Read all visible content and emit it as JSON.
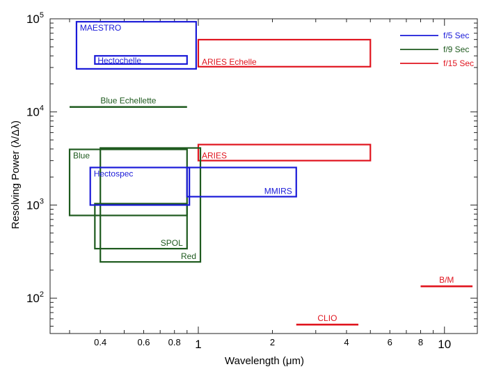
{
  "chart_data": {
    "type": "box-range",
    "xlabel": "Wavelength (μm)",
    "ylabel": "Resolving Power (λ/Δλ)",
    "xscale": "log",
    "yscale": "log",
    "xlim": [
      0.25,
      13.6
    ],
    "ylim": [
      41.7,
      100000
    ],
    "x_ticks": [
      {
        "value": 0.4,
        "label": "0.4"
      },
      {
        "value": 0.6,
        "label": "0.6"
      },
      {
        "value": 0.8,
        "label": "0.8"
      },
      {
        "value": 1,
        "label": "1"
      },
      {
        "value": 2,
        "label": "2"
      },
      {
        "value": 4,
        "label": "4"
      },
      {
        "value": 6,
        "label": "6"
      },
      {
        "value": 8,
        "label": "8"
      },
      {
        "value": 10,
        "label": "10"
      }
    ],
    "y_ticks": [
      {
        "value": 100,
        "base": "10",
        "exp": "2"
      },
      {
        "value": 1000,
        "base": "10",
        "exp": "3"
      },
      {
        "value": 10000,
        "base": "10",
        "exp": "4"
      },
      {
        "value": 100000,
        "base": "10",
        "exp": "5"
      }
    ],
    "legend": {
      "placement": "top-right",
      "entries": [
        {
          "label": "f/5 Sec",
          "color": "#1a1ad8"
        },
        {
          "label": "f/9 Sec",
          "color": "#1e5a1e"
        },
        {
          "label": "f/15 Sec",
          "color": "#e0141e"
        }
      ]
    },
    "instruments": [
      {
        "name": "MAESTRO",
        "group": "f/5 Sec",
        "shape": "box",
        "x": [
          0.32,
          0.98
        ],
        "y": [
          29000,
          93000
        ],
        "label_pos": "top-left"
      },
      {
        "name": "Hectochelle",
        "group": "f/5 Sec",
        "shape": "box",
        "x": [
          0.38,
          0.9
        ],
        "y": [
          32700,
          40000
        ],
        "label_pos": "left"
      },
      {
        "name": "ARIES Echelle",
        "group": "f/15 Sec",
        "shape": "box",
        "x": [
          1.0,
          5.0
        ],
        "y": [
          30600,
          59700
        ],
        "label_pos": "bottom-left"
      },
      {
        "name": "Blue Echellette",
        "group": "f/9 Sec",
        "shape": "line",
        "x": [
          0.3,
          0.9
        ],
        "y": [
          11300,
          11300
        ],
        "label_pos": "above"
      },
      {
        "name": "ARIES",
        "group": "f/15 Sec",
        "shape": "box",
        "x": [
          1.0,
          5.0
        ],
        "y": [
          3000,
          4460
        ],
        "label_pos": "bottom-left"
      },
      {
        "name": "Blue",
        "group": "f/9 Sec",
        "shape": "box",
        "x": [
          0.3,
          0.9
        ],
        "y": [
          773,
          3960
        ],
        "label_pos": "top-left"
      },
      {
        "name": "Red",
        "group": "f/9 Sec",
        "shape": "box",
        "x": [
          0.4,
          1.02
        ],
        "y": [
          245,
          4100
        ],
        "label_pos": "bottom-right"
      },
      {
        "name": "SPOL",
        "group": "f/9 Sec",
        "shape": "box",
        "x": [
          0.38,
          0.9
        ],
        "y": [
          340,
          1035
        ],
        "label_pos": "bottom-right"
      },
      {
        "name": "Hectospec",
        "group": "f/5 Sec",
        "shape": "box",
        "x": [
          0.364,
          0.92
        ],
        "y": [
          1000,
          2530
        ],
        "label_pos": "top-left"
      },
      {
        "name": "MMIRS",
        "group": "f/5 Sec",
        "shape": "box",
        "x": [
          0.9,
          2.5
        ],
        "y": [
          1230,
          2530
        ],
        "label_pos": "bottom-right"
      },
      {
        "name": "CLIO",
        "group": "f/15 Sec",
        "shape": "line",
        "x": [
          2.5,
          4.47
        ],
        "y": [
          52,
          52
        ],
        "label_pos": "above"
      },
      {
        "name": "B/M",
        "group": "f/15 Sec",
        "shape": "line",
        "x": [
          8.0,
          13.0
        ],
        "y": [
          134,
          134
        ],
        "label_pos": "above"
      }
    ]
  }
}
